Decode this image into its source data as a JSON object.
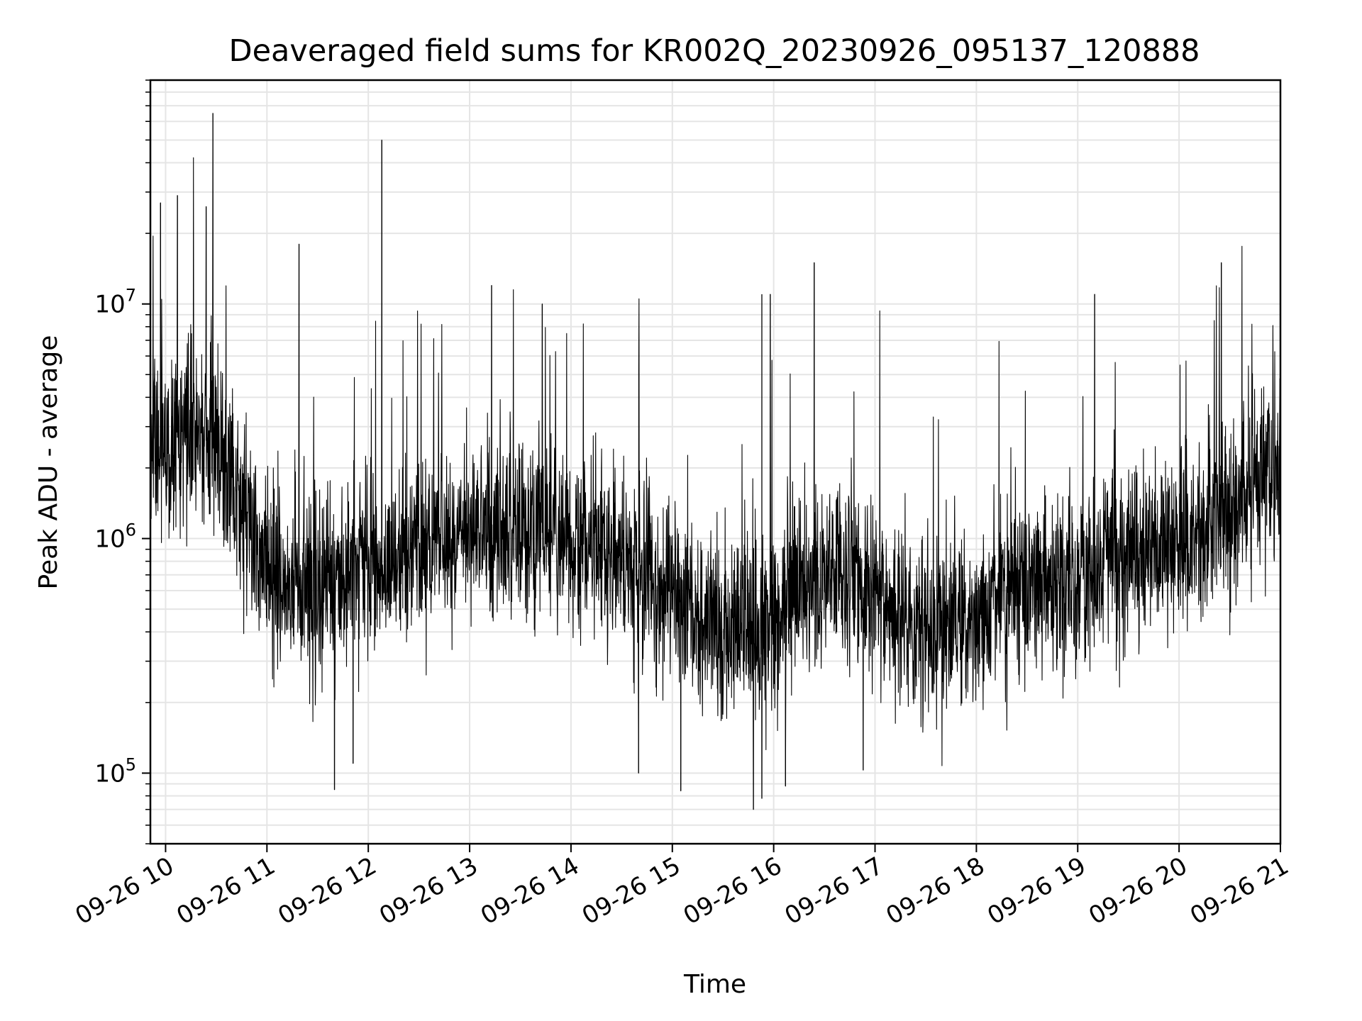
{
  "chart_data": {
    "type": "line",
    "title": "Deaveraged field sums for KR002Q_20230926_095137_120888",
    "xlabel": "Time",
    "ylabel": "Peak ADU - average",
    "y_scale": "log",
    "ylim": [
      50000,
      90000000
    ],
    "xlim": [
      "2023-09-26 09:51",
      "2023-09-26 21:00"
    ],
    "grid": true,
    "legend": "none",
    "line_color": "#000000",
    "grid_color": "#e5e5e5",
    "x_ticks": [
      {
        "value": "2023-09-26 10:00",
        "label": "09-26 10"
      },
      {
        "value": "2023-09-26 11:00",
        "label": "09-26 11"
      },
      {
        "value": "2023-09-26 12:00",
        "label": "09-26 12"
      },
      {
        "value": "2023-09-26 13:00",
        "label": "09-26 13"
      },
      {
        "value": "2023-09-26 14:00",
        "label": "09-26 14"
      },
      {
        "value": "2023-09-26 15:00",
        "label": "09-26 15"
      },
      {
        "value": "2023-09-26 16:00",
        "label": "09-26 16"
      },
      {
        "value": "2023-09-26 17:00",
        "label": "09-26 17"
      },
      {
        "value": "2023-09-26 18:00",
        "label": "09-26 18"
      },
      {
        "value": "2023-09-26 19:00",
        "label": "09-26 19"
      },
      {
        "value": "2023-09-26 20:00",
        "label": "09-26 20"
      },
      {
        "value": "2023-09-26 21:00",
        "label": "09-26 21"
      }
    ],
    "y_ticks": [
      {
        "value": 100000,
        "base": "10",
        "exp": "5"
      },
      {
        "value": 1000000,
        "base": "10",
        "exp": "6"
      },
      {
        "value": 10000000,
        "base": "10",
        "exp": "7"
      }
    ],
    "series": [
      {
        "x": [
          "2023-09-26 09:51",
          "2023-09-26 10:00",
          "2023-09-26 10:15",
          "2023-09-26 10:30",
          "2023-09-26 10:45",
          "2023-09-26 11:00",
          "2023-09-26 11:15",
          "2023-09-26 11:30",
          "2023-09-26 11:45",
          "2023-09-26 12:00",
          "2023-09-26 12:15",
          "2023-09-26 12:30",
          "2023-09-26 12:45",
          "2023-09-26 13:00",
          "2023-09-26 13:15",
          "2023-09-26 13:30",
          "2023-09-26 13:45",
          "2023-09-26 14:00",
          "2023-09-26 14:15",
          "2023-09-26 14:30",
          "2023-09-26 14:45",
          "2023-09-26 15:00",
          "2023-09-26 15:15",
          "2023-09-26 15:30",
          "2023-09-26 15:45",
          "2023-09-26 16:00",
          "2023-09-26 16:15",
          "2023-09-26 16:30",
          "2023-09-26 16:45",
          "2023-09-26 17:00",
          "2023-09-26 17:15",
          "2023-09-26 17:30",
          "2023-09-26 17:45",
          "2023-09-26 18:00",
          "2023-09-26 18:15",
          "2023-09-26 18:30",
          "2023-09-26 18:45",
          "2023-09-26 19:00",
          "2023-09-26 19:15",
          "2023-09-26 19:30",
          "2023-09-26 19:45",
          "2023-09-26 20:00",
          "2023-09-26 20:15",
          "2023-09-26 20:30",
          "2023-09-26 20:45",
          "2023-09-26 21:00"
        ],
        "y": [
          2200000,
          2600000,
          2800000,
          2500000,
          1300000,
          700000,
          650000,
          620000,
          700000,
          760000,
          820000,
          900000,
          1000000,
          1100000,
          1150000,
          1100000,
          1050000,
          1000000,
          950000,
          820000,
          700000,
          560000,
          450000,
          420000,
          400000,
          480000,
          620000,
          680000,
          650000,
          600000,
          480000,
          420000,
          400000,
          430000,
          560000,
          640000,
          650000,
          650000,
          800000,
          850000,
          950000,
          1000000,
          1050000,
          1300000,
          1700000,
          2200000
        ]
      }
    ],
    "spikes": [
      {
        "x": "2023-09-26 10:28",
        "y": 65000000
      },
      {
        "x": "2023-09-26 12:08",
        "y": 50000000
      },
      {
        "x": "2023-09-26 09:57",
        "y": 27000000
      },
      {
        "x": "2023-09-26 10:07",
        "y": 29000000
      },
      {
        "x": "2023-09-26 10:24",
        "y": 26000000
      },
      {
        "x": "2023-09-26 11:19",
        "y": 18000000
      },
      {
        "x": "2023-09-26 13:13",
        "y": 12000000
      },
      {
        "x": "2023-09-26 13:43",
        "y": 10000000
      },
      {
        "x": "2023-09-26 15:53",
        "y": 11000000
      },
      {
        "x": "2023-09-26 15:58",
        "y": 11000000
      },
      {
        "x": "2023-09-26 16:24",
        "y": 15000000
      },
      {
        "x": "2023-09-26 19:10",
        "y": 11000000
      },
      {
        "x": "2023-09-26 20:25",
        "y": 15000000
      },
      {
        "x": "2023-09-26 21:00",
        "y": 10000000
      }
    ],
    "dips": [
      {
        "x": "2023-09-26 11:40",
        "y": 85000.0
      },
      {
        "x": "2023-09-26 15:48",
        "y": 70000
      },
      {
        "x": "2023-09-26 15:53",
        "y": 78000
      },
      {
        "x": "2023-09-26 15:05",
        "y": 84000
      },
      {
        "x": "2023-09-26 16:07",
        "y": 88000
      },
      {
        "x": "2023-09-26 11:51",
        "y": 110000
      },
      {
        "x": "2023-09-26 14:40",
        "y": 100000
      },
      {
        "x": "2023-09-26 16:53",
        "y": 103000
      }
    ]
  }
}
